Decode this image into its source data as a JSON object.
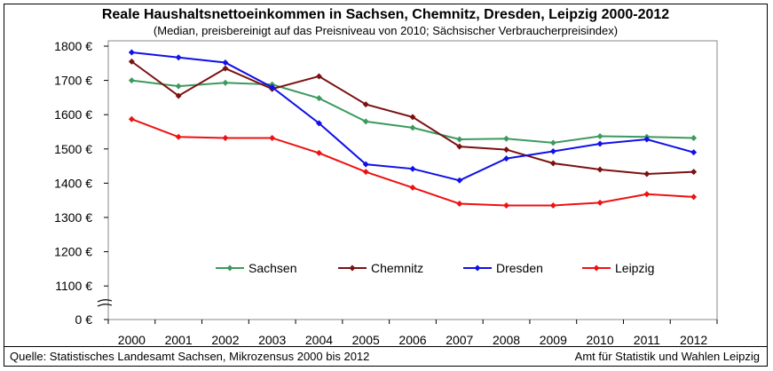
{
  "chart_data": {
    "type": "line",
    "title": "Reale Haushaltsnettoeinkommen in Sachsen, Chemnitz, Dresden, Leipzig 2000-2012",
    "subtitle": "(Median, preisbereinigt auf das Preisniveau von 2010; Sächsischer Verbraucherpreisindex)",
    "xlabel": "",
    "ylabel": "",
    "categories": [
      "2000",
      "2001",
      "2002",
      "2003",
      "2004",
      "2005",
      "2006",
      "2007",
      "2008",
      "2009",
      "2010",
      "2011",
      "2012"
    ],
    "y_ticks": [
      "0 €",
      "1100 €",
      "1200 €",
      "1300 €",
      "1400 €",
      "1500 €",
      "1600 €",
      "1700 €",
      "1800 €"
    ],
    "ylim": [
      1050,
      1800
    ],
    "axis_break": true,
    "grid": false,
    "legend_position": "inside-bottom",
    "series": [
      {
        "name": "Sachsen",
        "color": "#3c9a5f",
        "values": [
          1700,
          1683,
          1693,
          1688,
          1648,
          1580,
          1562,
          1528,
          1530,
          1518,
          1537,
          1535,
          1532
        ]
      },
      {
        "name": "Chemnitz",
        "color": "#7b1111",
        "values": [
          1755,
          1655,
          1735,
          1675,
          1712,
          1630,
          1593,
          1507,
          1498,
          1458,
          1440,
          1427,
          1433
        ]
      },
      {
        "name": "Dresden",
        "color": "#1010e8",
        "values": [
          1782,
          1767,
          1752,
          1680,
          1575,
          1455,
          1442,
          1408,
          1472,
          1493,
          1515,
          1528,
          1490
        ]
      },
      {
        "name": "Leipzig",
        "color": "#ee1111",
        "values": [
          1587,
          1535,
          1532,
          1532,
          1488,
          1433,
          1387,
          1340,
          1335,
          1335,
          1343,
          1368,
          1360
        ]
      }
    ]
  },
  "footer": {
    "source": "Quelle: Statistisches Landesamt Sachsen, Mikrozensus 2000 bis 2012",
    "publisher": "Amt für Statistik und Wahlen Leipzig"
  }
}
